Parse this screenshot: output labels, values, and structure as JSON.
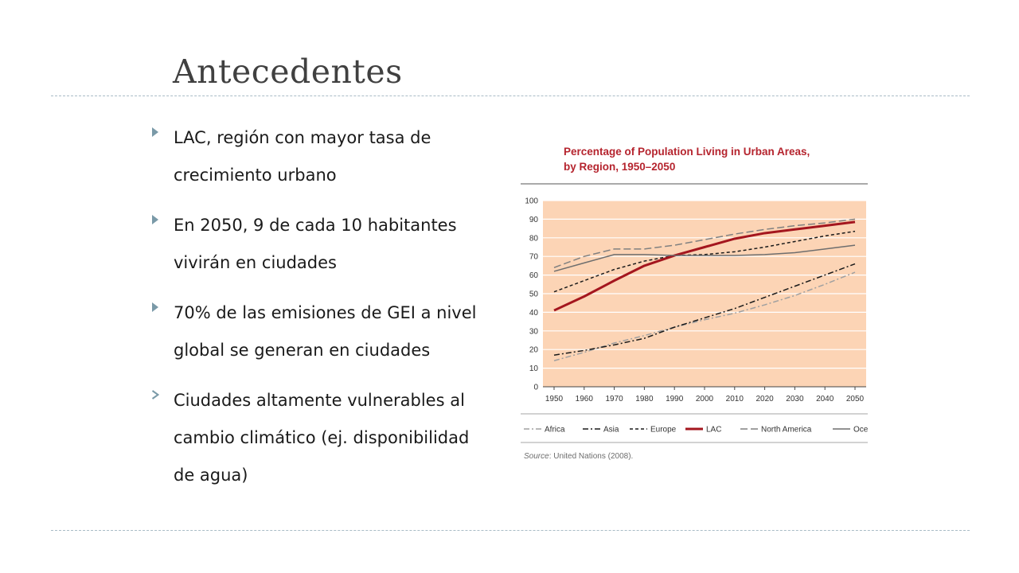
{
  "slide": {
    "title": "Antecedentes",
    "bullets": [
      {
        "text": "LAC, región con mayor tasa de crecimiento urbano",
        "marker": "triangle"
      },
      {
        "text": "En 2050, 9 de cada 10 habitantes vivirán en ciudades",
        "marker": "triangle"
      },
      {
        "text": "70% de las emisiones de GEI a nivel global se generan en ciudades",
        "marker": "triangle"
      },
      {
        "text": "Ciudades altamente vulnerables al cambio climático (ej. disponibilidad de agua)",
        "marker": "chevron"
      }
    ],
    "colors": {
      "marker": "#7a9aa8",
      "rule": "#a9bcc6",
      "title": "#404040"
    }
  },
  "chart": {
    "title_line1": "Percentage of Population Living in Urban Areas,",
    "title_line2": "by Region, 1950–2050",
    "source_label": "Source",
    "source_text": ": United Nations (2008)."
  },
  "chart_data": {
    "type": "line",
    "title": "Percentage of Population Living in Urban Areas, by Region, 1950–2050",
    "x": [
      1950,
      1960,
      1970,
      1980,
      1990,
      2000,
      2010,
      2020,
      2030,
      2040,
      2050
    ],
    "ylim": [
      0,
      100
    ],
    "yticks": [
      0,
      10,
      20,
      30,
      40,
      50,
      60,
      70,
      80,
      90,
      100
    ],
    "grid": true,
    "legend_position": "bottom",
    "plot_background": "#fcd4b5",
    "series": [
      {
        "name": "Africa",
        "color": "#a0a0a0",
        "dash": "dashdot",
        "values": [
          14,
          18.5,
          23.5,
          27.5,
          32,
          36,
          39.5,
          44,
          49,
          55,
          61.5
        ]
      },
      {
        "name": "Asia",
        "color": "#1a1a1a",
        "dash": "dashdot",
        "values": [
          17,
          19.5,
          22.5,
          26,
          32,
          37,
          42,
          48,
          54,
          60,
          66
        ]
      },
      {
        "name": "Europe",
        "color": "#1a1a1a",
        "dash": "dash",
        "values": [
          51,
          57,
          63,
          67.5,
          70.5,
          71,
          72.5,
          75,
          78,
          81,
          83.5
        ]
      },
      {
        "name": "LAC",
        "color": "#a4161e",
        "dash": "solid",
        "values": [
          41,
          48.5,
          57,
          65,
          70.5,
          75,
          79.5,
          82.5,
          84.5,
          86.5,
          88.5
        ]
      },
      {
        "name": "North America",
        "color": "#808080",
        "dash": "longdash",
        "values": [
          64,
          70,
          74,
          74,
          76,
          79,
          82,
          84.5,
          86.5,
          88,
          90
        ]
      },
      {
        "name": "Oceania",
        "color": "#6e6e6e",
        "dash": "solid",
        "values": [
          62,
          66.5,
          71,
          71,
          70.5,
          70.5,
          70.5,
          71,
          72,
          74,
          76
        ]
      }
    ]
  }
}
